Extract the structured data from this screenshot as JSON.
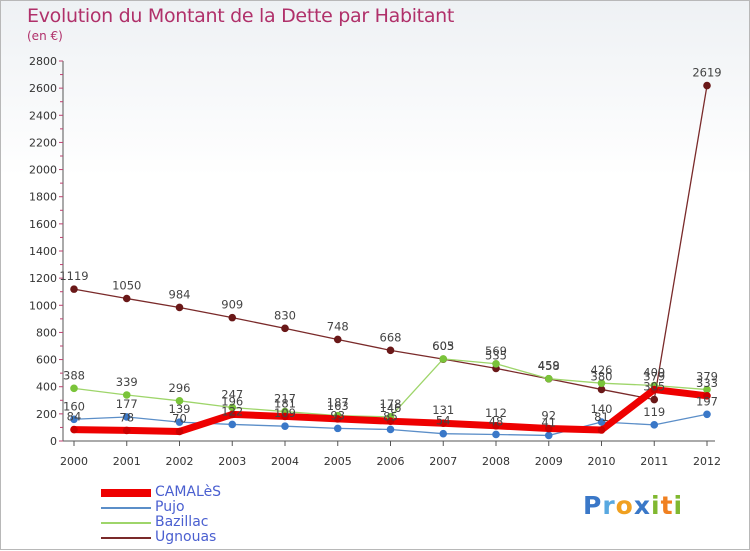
{
  "title": "Evolution du Montant de la Dette par Habitant",
  "unit": "(en €)",
  "brand": {
    "letters": [
      {
        "ch": "P",
        "color": "#3a78c8"
      },
      {
        "ch": "r",
        "color": "#58a8e0"
      },
      {
        "ch": "o",
        "color": "#f0a020"
      },
      {
        "ch": "x",
        "color": "#3a78c8"
      },
      {
        "ch": "i",
        "color": "#80b830"
      },
      {
        "ch": "t",
        "color": "#f08020"
      },
      {
        "ch": "i",
        "color": "#80b830"
      }
    ]
  },
  "chart_data": {
    "type": "line",
    "title": "Evolution du Montant de la Dette par Habitant",
    "ylabel": "(en €)",
    "xlabel": "",
    "ylim": [
      0,
      2800
    ],
    "yticks": [
      0,
      200,
      400,
      600,
      800,
      1000,
      1200,
      1400,
      1600,
      1800,
      2000,
      2200,
      2400,
      2600,
      2800
    ],
    "x": [
      "2000",
      "2001",
      "2002",
      "2003",
      "2004",
      "2005",
      "2006",
      "2007",
      "2008",
      "2009",
      "2010",
      "2011",
      "2012"
    ],
    "grid": false,
    "legend_position": "bottom-left",
    "series": [
      {
        "name": "Ugnouas",
        "color": "#7a2a2a",
        "marker": "#6a1818",
        "width": 1.3,
        "values": [
          1119,
          1050,
          984,
          909,
          830,
          748,
          668,
          603,
          535,
          458,
          380,
          305,
          2619
        ],
        "labels": [
          "1119",
          "1050",
          "984",
          "909",
          "830",
          "748",
          "668",
          "603",
          "535",
          "458",
          "380",
          "305",
          "2619"
        ]
      },
      {
        "name": "Bazillac",
        "color": "#9ed56a",
        "marker": "#7ac43a",
        "width": 1.3,
        "values": [
          388,
          339,
          296,
          247,
          217,
          187,
          178,
          605,
          569,
          459,
          426,
          409,
          379
        ],
        "labels": [
          "388",
          "339",
          "296",
          "247",
          "217",
          "187",
          "178",
          "605",
          "569",
          "459",
          "426",
          "409",
          "379"
        ]
      },
      {
        "name": "Pujo",
        "color": "#5b8ec8",
        "marker": "#3a78c8",
        "width": 1.3,
        "values": [
          160,
          177,
          139,
          122,
          109,
          93,
          85,
          54,
          48,
          41,
          140,
          119,
          197
        ],
        "labels": [
          "160",
          "177",
          "139",
          "122",
          "109",
          "93",
          "85",
          "54",
          "48",
          "41",
          "140",
          "119",
          "197"
        ]
      },
      {
        "name": "CAMALèS",
        "color": "#ee0000",
        "marker": "#cc0000",
        "width": 7,
        "values": [
          84,
          78,
          70,
          196,
          181,
          163,
          146,
          131,
          112,
          92,
          81,
          379,
          333
        ],
        "labels": [
          "84",
          "78",
          "70",
          "196",
          "181",
          "163",
          "146",
          "131",
          "112",
          "92",
          "81",
          "379",
          "333"
        ]
      }
    ],
    "legend_order": [
      "CAMALèS",
      "Pujo",
      "Bazillac",
      "Ugnouas"
    ]
  }
}
